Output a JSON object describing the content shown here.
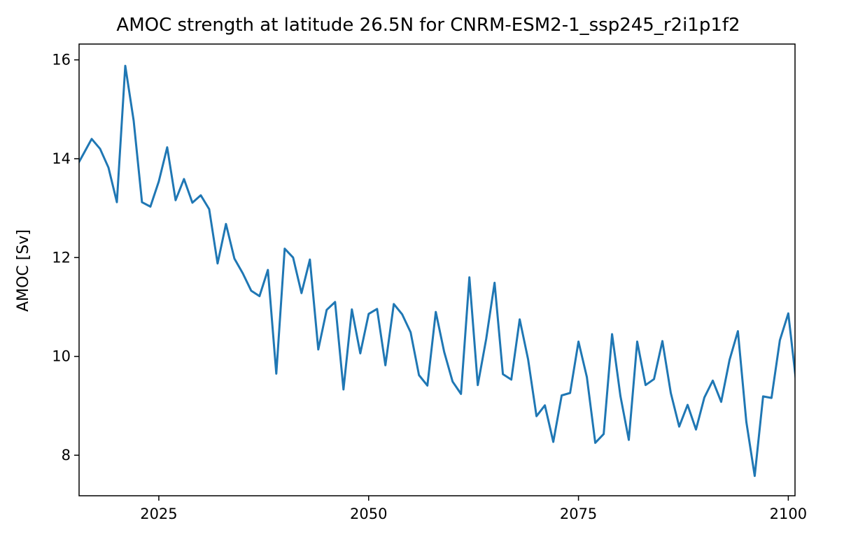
{
  "chart_data": {
    "type": "line",
    "title": "AMOC strength at latitude 26.5N for CNRM-ESM2-1_ssp245_r2i1p1f2",
    "xlabel": "",
    "ylabel": "AMOC [Sv]",
    "xlim": [
      2015.5,
      2100.8
    ],
    "ylim": [
      7.18,
      16.32
    ],
    "xticks": [
      2025,
      2050,
      2075,
      2100
    ],
    "xtick_labels": [
      "2025",
      "2050",
      "2075",
      "2100"
    ],
    "yticks": [
      8,
      10,
      12,
      14,
      16
    ],
    "ytick_labels": [
      "8",
      "10",
      "12",
      "14",
      "16"
    ],
    "grid": false,
    "line_color": "#1f77b4",
    "series": [
      {
        "x": [
          2015,
          2016,
          2017,
          2018,
          2019,
          2020,
          2021,
          2022,
          2023,
          2024,
          2025,
          2026,
          2027,
          2028,
          2029,
          2030,
          2031,
          2032,
          2033,
          2034,
          2035,
          2036,
          2037,
          2038,
          2039,
          2040,
          2041,
          2042,
          2043,
          2044,
          2045,
          2046,
          2047,
          2048,
          2049,
          2050,
          2051,
          2052,
          2053,
          2054,
          2055,
          2056,
          2057,
          2058,
          2059,
          2060,
          2061,
          2062,
          2063,
          2064,
          2065,
          2066,
          2067,
          2068,
          2069,
          2070,
          2071,
          2072,
          2073,
          2074,
          2075,
          2076,
          2077,
          2078,
          2079,
          2080,
          2081,
          2082,
          2083,
          2084,
          2085,
          2086,
          2087,
          2088,
          2089,
          2090,
          2091,
          2092,
          2093,
          2094,
          2095,
          2096,
          2097,
          2098,
          2099,
          2100,
          2101
        ],
        "values": [
          13.78,
          14.09,
          14.4,
          14.2,
          13.82,
          13.12,
          15.88,
          14.77,
          13.12,
          13.03,
          13.54,
          14.23,
          13.16,
          13.59,
          13.11,
          13.26,
          12.98,
          11.88,
          12.68,
          11.98,
          11.68,
          11.33,
          11.22,
          11.75,
          9.65,
          12.18,
          12.0,
          11.28,
          11.96,
          10.14,
          10.94,
          11.1,
          9.33,
          10.95,
          10.06,
          10.86,
          10.96,
          9.82,
          11.06,
          10.85,
          10.49,
          9.62,
          9.41,
          10.9,
          10.09,
          9.49,
          9.24,
          11.6,
          9.42,
          10.35,
          11.49,
          9.64,
          9.53,
          10.75,
          9.94,
          8.79,
          9.01,
          8.27,
          9.21,
          9.26,
          10.3,
          9.58,
          8.25,
          8.43,
          10.45,
          9.2,
          8.31,
          10.3,
          9.42,
          9.54,
          10.31,
          9.26,
          8.58,
          9.02,
          8.52,
          9.17,
          9.51,
          9.08,
          9.93,
          10.51,
          8.68,
          7.58,
          9.19,
          9.16,
          10.33,
          10.87,
          9.38
        ]
      }
    ]
  }
}
